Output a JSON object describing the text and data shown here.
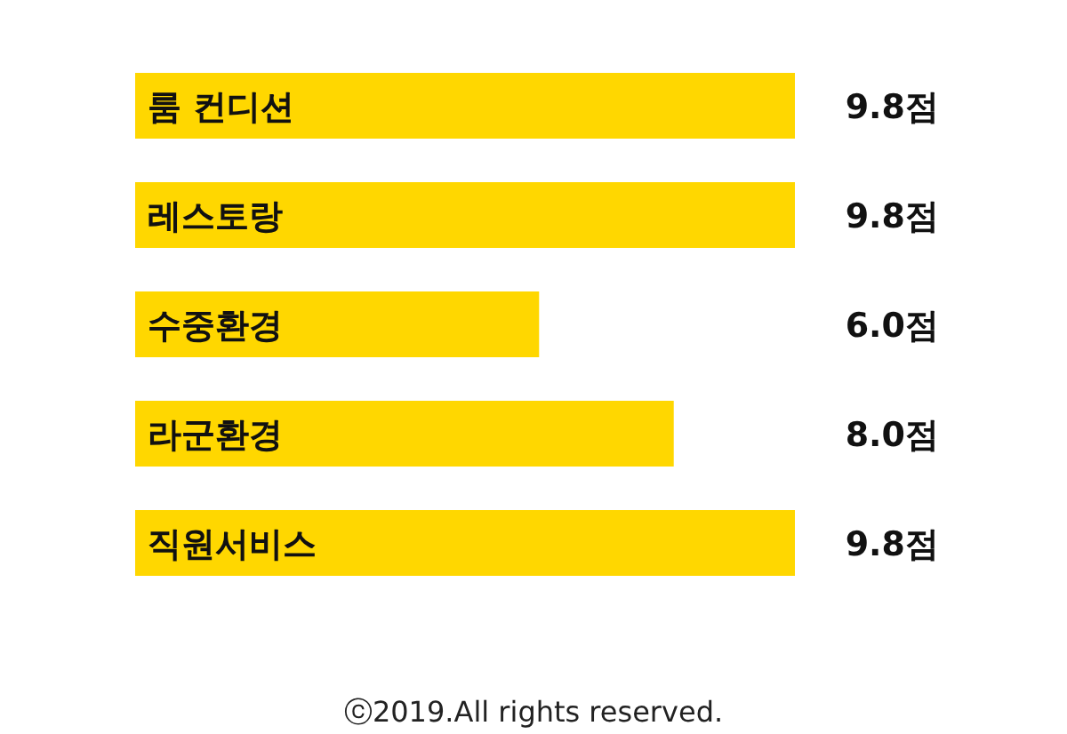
{
  "chart_data": {
    "type": "bar",
    "orientation": "horizontal",
    "categories": [
      "룸 컨디션",
      "레스토랑",
      "수중환경",
      "라군환경",
      "직원서비스"
    ],
    "values": [
      9.8,
      9.8,
      6.0,
      8.0,
      9.8
    ],
    "value_labels": [
      "9.8점",
      "9.8점",
      "6.0점",
      "8.0점",
      "9.8점"
    ],
    "color": "#ffd700",
    "annotations": [
      "ⓒ2019.All rights reserved."
    ]
  }
}
